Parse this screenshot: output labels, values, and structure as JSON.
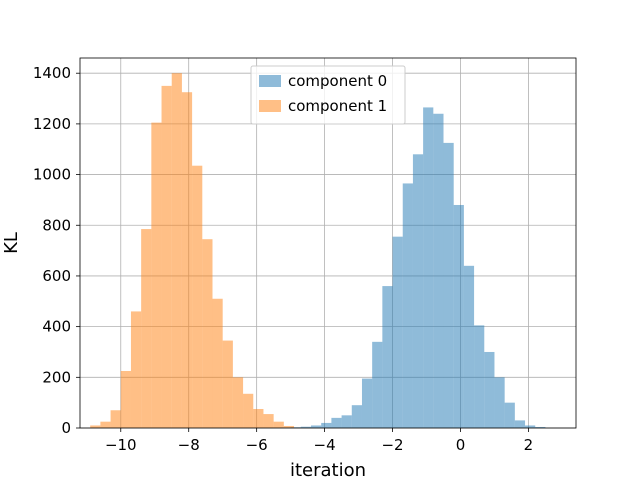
{
  "chart_data": {
    "type": "bar",
    "subtype": "histogram",
    "title": "",
    "xlabel": "iteration",
    "ylabel": "KL",
    "xlim": [
      -11.2,
      3.4
    ],
    "ylim": [
      0,
      1460
    ],
    "grid": true,
    "legend_position": "top-center",
    "xticks": [
      -10,
      -8,
      -6,
      -4,
      -2,
      0,
      2
    ],
    "xtick_labels": [
      "−10",
      "−8",
      "−6",
      "−4",
      "−2",
      "0",
      "2"
    ],
    "yticks": [
      0,
      200,
      400,
      600,
      800,
      1000,
      1200,
      1400
    ],
    "ytick_labels": [
      "0",
      "200",
      "400",
      "600",
      "800",
      "1000",
      "1200",
      "1400"
    ],
    "series": [
      {
        "name": "component 0",
        "color": "#1f77b4",
        "opacity": 0.5,
        "bins": [
          {
            "x0": -5.3,
            "x1": -5.0,
            "count": 2
          },
          {
            "x0": -5.0,
            "x1": -4.7,
            "count": 3
          },
          {
            "x0": -4.7,
            "x1": -4.4,
            "count": 5
          },
          {
            "x0": -4.4,
            "x1": -4.1,
            "count": 10
          },
          {
            "x0": -4.1,
            "x1": -3.8,
            "count": 20
          },
          {
            "x0": -3.8,
            "x1": -3.5,
            "count": 40
          },
          {
            "x0": -3.5,
            "x1": -3.2,
            "count": 50
          },
          {
            "x0": -3.2,
            "x1": -2.9,
            "count": 90
          },
          {
            "x0": -2.9,
            "x1": -2.6,
            "count": 195
          },
          {
            "x0": -2.6,
            "x1": -2.3,
            "count": 340
          },
          {
            "x0": -2.3,
            "x1": -2.0,
            "count": 560
          },
          {
            "x0": -2.0,
            "x1": -1.7,
            "count": 755
          },
          {
            "x0": -1.7,
            "x1": -1.4,
            "count": 965
          },
          {
            "x0": -1.4,
            "x1": -1.1,
            "count": 1080
          },
          {
            "x0": -1.1,
            "x1": -0.8,
            "count": 1265
          },
          {
            "x0": -0.8,
            "x1": -0.5,
            "count": 1240
          },
          {
            "x0": -0.5,
            "x1": -0.2,
            "count": 1125
          },
          {
            "x0": -0.2,
            "x1": 0.1,
            "count": 880
          },
          {
            "x0": 0.1,
            "x1": 0.4,
            "count": 640
          },
          {
            "x0": 0.4,
            "x1": 0.7,
            "count": 405
          },
          {
            "x0": 0.7,
            "x1": 1.0,
            "count": 300
          },
          {
            "x0": 1.0,
            "x1": 1.3,
            "count": 200
          },
          {
            "x0": 1.3,
            "x1": 1.6,
            "count": 100
          },
          {
            "x0": 1.6,
            "x1": 1.9,
            "count": 30
          },
          {
            "x0": 1.9,
            "x1": 2.2,
            "count": 10
          },
          {
            "x0": 2.2,
            "x1": 2.5,
            "count": 4
          }
        ]
      },
      {
        "name": "component 1",
        "color": "#ff7f0e",
        "opacity": 0.5,
        "bins": [
          {
            "x0": -10.9,
            "x1": -10.6,
            "count": 10
          },
          {
            "x0": -10.6,
            "x1": -10.3,
            "count": 25
          },
          {
            "x0": -10.3,
            "x1": -10.0,
            "count": 70
          },
          {
            "x0": -10.0,
            "x1": -9.7,
            "count": 225
          },
          {
            "x0": -9.7,
            "x1": -9.4,
            "count": 460
          },
          {
            "x0": -9.4,
            "x1": -9.1,
            "count": 785
          },
          {
            "x0": -9.1,
            "x1": -8.8,
            "count": 1205
          },
          {
            "x0": -8.8,
            "x1": -8.5,
            "count": 1350
          },
          {
            "x0": -8.5,
            "x1": -8.2,
            "count": 1400
          },
          {
            "x0": -8.2,
            "x1": -7.9,
            "count": 1325
          },
          {
            "x0": -7.9,
            "x1": -7.6,
            "count": 1035
          },
          {
            "x0": -7.6,
            "x1": -7.3,
            "count": 745
          },
          {
            "x0": -7.3,
            "x1": -7.0,
            "count": 510
          },
          {
            "x0": -7.0,
            "x1": -6.7,
            "count": 345
          },
          {
            "x0": -6.7,
            "x1": -6.4,
            "count": 200
          },
          {
            "x0": -6.4,
            "x1": -6.1,
            "count": 135
          },
          {
            "x0": -6.1,
            "x1": -5.8,
            "count": 75
          },
          {
            "x0": -5.8,
            "x1": -5.5,
            "count": 55
          },
          {
            "x0": -5.5,
            "x1": -5.2,
            "count": 25
          },
          {
            "x0": -5.2,
            "x1": -4.9,
            "count": 8
          }
        ]
      }
    ]
  }
}
